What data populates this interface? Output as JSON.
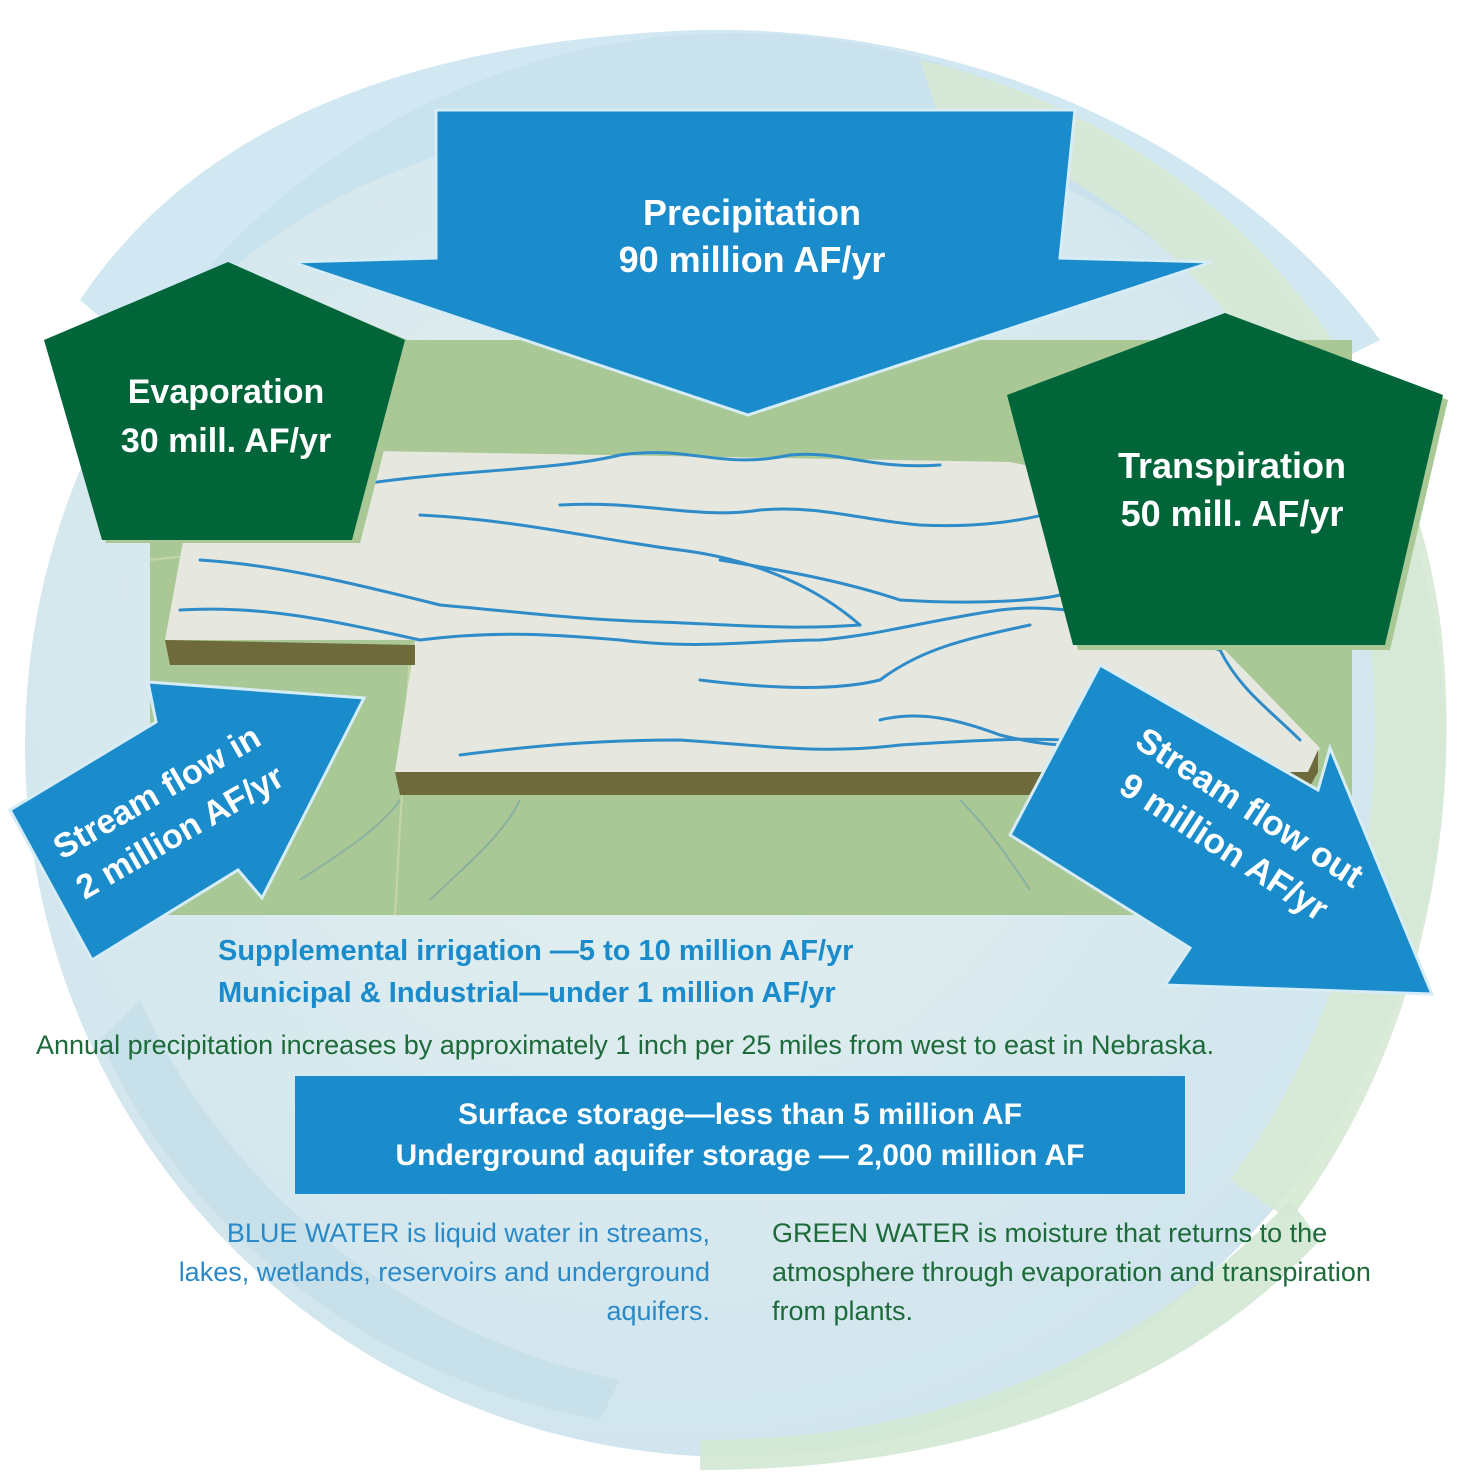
{
  "arrows": {
    "precipitation": {
      "line1": "Precipitation",
      "line2": "90 million AF/yr"
    },
    "evaporation": {
      "line1": "Evaporation",
      "line2": "30 mill. AF/yr"
    },
    "transpiration": {
      "line1": "Transpiration",
      "line2": "50 mill. AF/yr"
    },
    "stream_in": {
      "line1": "Stream flow in",
      "line2": "2 million AF/yr"
    },
    "stream_out": {
      "line1": "Stream flow out",
      "line2": "9 million AF/yr"
    }
  },
  "use": {
    "irrigation": "Supplemental irrigation —5 to 10 million AF/yr",
    "municipal": "Municipal & Industrial—under 1 million AF/yr"
  },
  "note": "Annual precipitation increases by approximately 1 inch per 25 miles from west to east in Nebraska.",
  "storage": {
    "surface": "Surface storage—less than 5 million AF",
    "aquifer": "Underground aquifer storage — 2,000 million AF"
  },
  "definitions": {
    "blue_water": "BLUE WATER is liquid water in streams, lakes, wetlands, reservoirs and underground aquifers.",
    "green_water": "GREEN WATER is moisture that returns to the atmosphere through evaporation and transpiration from plants."
  },
  "colors": {
    "blue": "#1a8ccc",
    "dark_green": "#00663a",
    "text_green": "#1d6a3a",
    "map_green": "#a9c895",
    "land": "#e6e8df",
    "edge": "#6f6a3c",
    "circle_blue": "#cde7f2",
    "circle_green": "#dcebd8"
  }
}
